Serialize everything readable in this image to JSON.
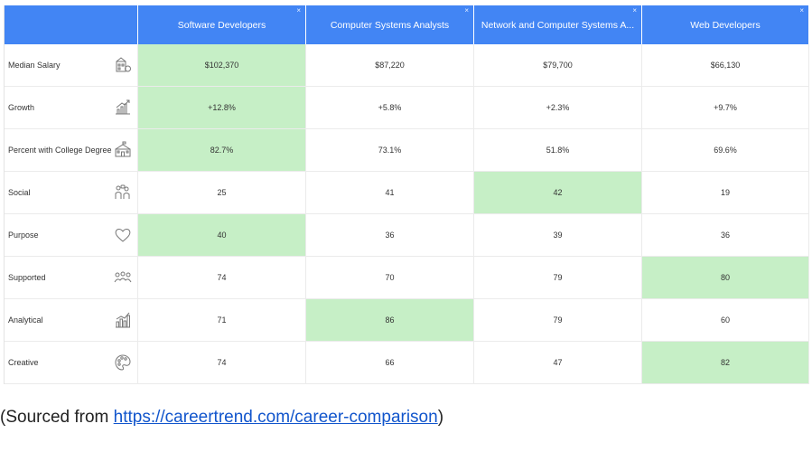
{
  "columns": [
    {
      "name": "Software Developers"
    },
    {
      "name": "Computer Systems Analysts"
    },
    {
      "name": "Network and Computer Systems A..."
    },
    {
      "name": "Web Developers"
    }
  ],
  "close_glyph": "×",
  "rows": [
    {
      "label": "Median Salary",
      "icon": "building-money-icon",
      "values": [
        "$102,370",
        "$87,220",
        "$79,700",
        "$66,130"
      ],
      "highlight": [
        true,
        false,
        false,
        false
      ]
    },
    {
      "label": "Growth",
      "icon": "growth-chart-icon",
      "values": [
        "+12.8%",
        "+5.8%",
        "+2.3%",
        "+9.7%"
      ],
      "highlight": [
        true,
        false,
        false,
        false
      ]
    },
    {
      "label": "Percent with College Degree",
      "icon": "school-building-icon",
      "values": [
        "82.7%",
        "73.1%",
        "51.8%",
        "69.6%"
      ],
      "highlight": [
        true,
        false,
        false,
        false
      ]
    },
    {
      "label": "Social",
      "icon": "people-talking-icon",
      "values": [
        "25",
        "41",
        "42",
        "19"
      ],
      "highlight": [
        false,
        false,
        true,
        false
      ]
    },
    {
      "label": "Purpose",
      "icon": "heart-icon",
      "values": [
        "40",
        "36",
        "39",
        "36"
      ],
      "highlight": [
        true,
        false,
        false,
        false
      ]
    },
    {
      "label": "Supported",
      "icon": "group-support-icon",
      "values": [
        "74",
        "70",
        "79",
        "80"
      ],
      "highlight": [
        false,
        false,
        false,
        true
      ]
    },
    {
      "label": "Analytical",
      "icon": "bar-chart-icon",
      "values": [
        "71",
        "86",
        "79",
        "60"
      ],
      "highlight": [
        false,
        true,
        false,
        false
      ]
    },
    {
      "label": "Creative",
      "icon": "palette-icon",
      "values": [
        "74",
        "66",
        "47",
        "82"
      ],
      "highlight": [
        false,
        false,
        false,
        true
      ]
    }
  ],
  "colors": {
    "header": "#4285f4",
    "highlight": "#c6efc6",
    "link": "#1155cc"
  },
  "source": {
    "prefix": "(Sourced from ",
    "link_text": "https://careertrend.com/career-comparison",
    "suffix": ")"
  }
}
